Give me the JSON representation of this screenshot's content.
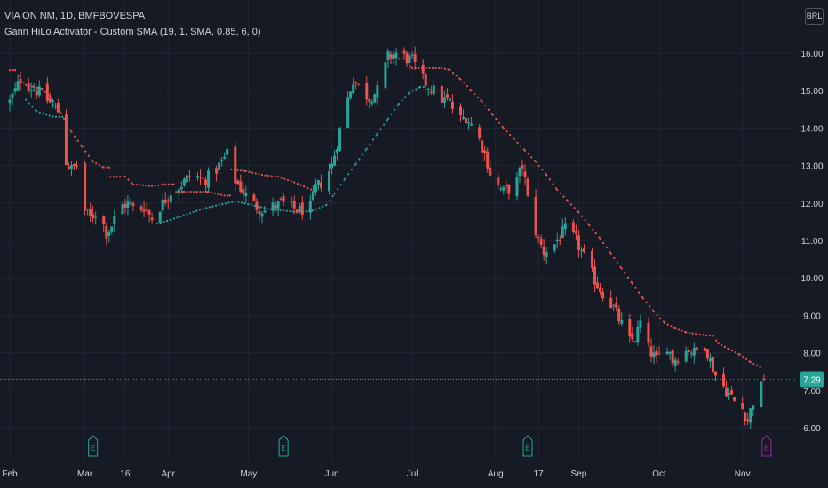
{
  "header": {
    "symbol_line": "VIA ON NM, 1D, BMFBOVESPA",
    "indicator_line": "Gann HiLo Activator - Custom SMA (19, 1, SMA, 0.85, 6, 0)",
    "currency_button": "BRL"
  },
  "colors": {
    "background": "#161a25",
    "grid": "#222632",
    "up": "#26a69a",
    "down": "#ef5350",
    "axis_text": "#d1d4dc",
    "last_price_bg": "#26a69a",
    "event_icon": "#26a69a",
    "event_icon_future": "#9c27b0"
  },
  "chart_data": {
    "type": "candlestick",
    "title": "VIA ON NM, 1D, BMFBOVESPA",
    "y_ticks": [
      "6.00",
      "7.00",
      "8.00",
      "9.00",
      "10.00",
      "11.00",
      "12.00",
      "13.00",
      "14.00",
      "15.00",
      "16.00"
    ],
    "ylim": [
      5.6,
      16.6
    ],
    "x_labels": [
      {
        "label": "Feb",
        "day": 0
      },
      {
        "label": "Mar",
        "day": 28
      },
      {
        "label": "16",
        "day": 43
      },
      {
        "label": "Apr",
        "day": 59
      },
      {
        "label": "May",
        "day": 89
      },
      {
        "label": "Jun",
        "day": 120
      },
      {
        "label": "Jul",
        "day": 150
      },
      {
        "label": "Aug",
        "day": 181
      },
      {
        "label": "17",
        "day": 197
      },
      {
        "label": "Sep",
        "day": 212
      },
      {
        "label": "Oct",
        "day": 242
      },
      {
        "label": "Nov",
        "day": 273
      }
    ],
    "xlim": [
      -1,
      288
    ],
    "last_price": 7.29,
    "last_price_label": "7.29",
    "event_markers": [
      {
        "day": 31,
        "icon": "E",
        "future": false
      },
      {
        "day": 102,
        "icon": "E",
        "future": false
      },
      {
        "day": 193,
        "icon": "E",
        "future": false
      },
      {
        "day": 282,
        "icon": "E",
        "future": true
      }
    ],
    "price_path": [
      [
        0,
        14.7
      ],
      [
        4,
        15.3
      ],
      [
        8,
        15.1
      ],
      [
        12,
        14.9
      ],
      [
        16,
        14.6
      ],
      [
        20,
        14.3
      ],
      [
        21,
        13.1
      ],
      [
        23,
        12.9
      ],
      [
        25,
        13.0
      ],
      [
        27,
        11.9
      ],
      [
        30,
        11.6
      ],
      [
        33,
        11.8
      ],
      [
        36,
        11.2
      ],
      [
        38,
        11.4
      ],
      [
        41,
        11.9
      ],
      [
        44,
        12.0
      ],
      [
        47,
        11.8
      ],
      [
        50,
        11.9
      ],
      [
        53,
        11.6
      ],
      [
        56,
        11.9
      ],
      [
        60,
        12.3
      ],
      [
        64,
        12.5
      ],
      [
        68,
        12.8
      ],
      [
        72,
        12.6
      ],
      [
        76,
        12.8
      ],
      [
        80,
        13.2
      ],
      [
        82,
        13.4
      ],
      [
        84,
        12.6
      ],
      [
        86,
        12.4
      ],
      [
        89,
        12.1
      ],
      [
        92,
        11.9
      ],
      [
        95,
        11.8
      ],
      [
        98,
        11.9
      ],
      [
        101,
        12.0
      ],
      [
        104,
        11.9
      ],
      [
        108,
        11.8
      ],
      [
        112,
        11.9
      ],
      [
        114,
        12.4
      ],
      [
        117,
        12.6
      ],
      [
        120,
        13.0
      ],
      [
        122,
        13.6
      ],
      [
        124,
        14.3
      ],
      [
        126,
        14.8
      ],
      [
        128,
        15.3
      ],
      [
        131,
        15.0
      ],
      [
        134,
        14.8
      ],
      [
        137,
        15.0
      ],
      [
        139,
        15.4
      ],
      [
        141,
        15.9
      ],
      [
        144,
        16.0
      ],
      [
        147,
        15.9
      ],
      [
        150,
        15.8
      ],
      [
        152,
        15.5
      ],
      [
        155,
        15.2
      ],
      [
        158,
        15.0
      ],
      [
        160,
        14.8
      ],
      [
        164,
        14.7
      ],
      [
        167,
        14.2
      ],
      [
        170,
        14.3
      ],
      [
        173,
        14.0
      ],
      [
        175,
        13.7
      ],
      [
        177,
        13.3
      ],
      [
        179,
        12.8
      ],
      [
        181,
        12.5
      ],
      [
        184,
        12.3
      ],
      [
        187,
        12.4
      ],
      [
        189,
        12.6
      ],
      [
        191,
        13.0
      ],
      [
        192,
        12.6
      ],
      [
        193,
        12.1
      ],
      [
        195,
        11.5
      ],
      [
        197,
        11.0
      ],
      [
        199,
        10.7
      ],
      [
        201,
        10.8
      ],
      [
        203,
        10.9
      ],
      [
        205,
        11.1
      ],
      [
        207,
        11.3
      ],
      [
        209,
        11.2
      ],
      [
        211,
        11.0
      ],
      [
        213,
        10.7
      ],
      [
        215,
        10.4
      ],
      [
        217,
        10.1
      ],
      [
        219,
        9.8
      ],
      [
        221,
        9.6
      ],
      [
        223,
        9.4
      ],
      [
        225,
        9.2
      ],
      [
        227,
        8.9
      ],
      [
        229,
        8.6
      ],
      [
        231,
        8.3
      ],
      [
        233,
        8.4
      ],
      [
        235,
        8.8
      ],
      [
        237,
        8.2
      ],
      [
        239,
        8.0
      ],
      [
        241,
        7.8
      ],
      [
        243,
        8.0
      ],
      [
        245,
        8.2
      ],
      [
        247,
        7.8
      ],
      [
        249,
        7.9
      ],
      [
        251,
        8.0
      ],
      [
        253,
        8.1
      ],
      [
        255,
        8.0
      ],
      [
        257,
        8.1
      ],
      [
        259,
        8.2
      ],
      [
        261,
        7.8
      ],
      [
        263,
        7.4
      ],
      [
        265,
        7.2
      ],
      [
        267,
        7.0
      ],
      [
        269,
        6.8
      ],
      [
        271,
        6.6
      ],
      [
        273,
        6.5
      ],
      [
        275,
        6.2
      ],
      [
        277,
        6.7
      ],
      [
        279,
        6.9
      ],
      [
        281,
        7.29
      ]
    ],
    "hilo_bear": [
      [
        0,
        15.55
      ],
      [
        2,
        15.55
      ],
      [
        4,
        15.3
      ],
      [
        6,
        15.15
      ],
      [
        9,
        15.1
      ],
      [
        12,
        15.05
      ],
      [
        15,
        14.85
      ],
      [
        19,
        14.4
      ],
      [
        23,
        13.9
      ],
      [
        27,
        13.5
      ],
      [
        31,
        13.1
      ],
      [
        35,
        12.95
      ],
      [
        37,
        12.95
      ],
      [
        37.5,
        12.7
      ],
      [
        43,
        12.7
      ],
      [
        46,
        12.5
      ],
      [
        53,
        12.45
      ],
      [
        58,
        12.5
      ],
      [
        61,
        12.5
      ],
      [
        62,
        12.3
      ],
      [
        65,
        12.3
      ],
      [
        74,
        12.3
      ],
      [
        80,
        12.2
      ],
      [
        82,
        12.2
      ],
      [
        82.5,
        12.9
      ],
      [
        88,
        12.85
      ],
      [
        94,
        12.75
      ],
      [
        100,
        12.7
      ],
      [
        106,
        12.55
      ],
      [
        111,
        12.4
      ],
      [
        114,
        12.3
      ],
      [
        145,
        15.85
      ],
      [
        147,
        15.85
      ],
      [
        150,
        15.6
      ],
      [
        154,
        15.6
      ],
      [
        161,
        15.6
      ],
      [
        164,
        15.55
      ],
      [
        168,
        15.3
      ],
      [
        172,
        15.0
      ],
      [
        176,
        14.7
      ],
      [
        180,
        14.35
      ],
      [
        184,
        14.0
      ],
      [
        188,
        13.7
      ],
      [
        192,
        13.4
      ],
      [
        196,
        13.1
      ],
      [
        200,
        12.75
      ],
      [
        204,
        12.35
      ],
      [
        208,
        12.05
      ],
      [
        212,
        11.75
      ],
      [
        216,
        11.4
      ],
      [
        220,
        11.05
      ],
      [
        224,
        10.65
      ],
      [
        228,
        10.25
      ],
      [
        232,
        9.85
      ],
      [
        236,
        9.45
      ],
      [
        240,
        9.1
      ],
      [
        244,
        8.8
      ],
      [
        248,
        8.65
      ],
      [
        252,
        8.55
      ],
      [
        256,
        8.5
      ],
      [
        262,
        8.45
      ],
      [
        264,
        8.25
      ],
      [
        268,
        8.1
      ],
      [
        272,
        7.95
      ],
      [
        276,
        7.75
      ],
      [
        280,
        7.6
      ]
    ],
    "hilo_bull": [
      [
        6,
        14.75
      ],
      [
        10,
        14.45
      ],
      [
        16,
        14.3
      ],
      [
        20,
        14.3
      ],
      [
        55,
        11.45
      ],
      [
        60,
        11.55
      ],
      [
        66,
        11.7
      ],
      [
        72,
        11.85
      ],
      [
        78,
        11.95
      ],
      [
        84,
        12.05
      ],
      [
        90,
        11.95
      ],
      [
        96,
        11.85
      ],
      [
        102,
        11.8
      ],
      [
        108,
        11.75
      ],
      [
        113,
        11.8
      ],
      [
        118,
        11.95
      ],
      [
        121,
        12.25
      ],
      [
        125,
        12.65
      ],
      [
        129,
        13.05
      ],
      [
        133,
        13.45
      ],
      [
        137,
        13.85
      ],
      [
        141,
        14.25
      ],
      [
        145,
        14.65
      ],
      [
        149,
        14.95
      ],
      [
        153,
        15.1
      ],
      [
        155,
        15.1
      ]
    ],
    "grid": true
  }
}
